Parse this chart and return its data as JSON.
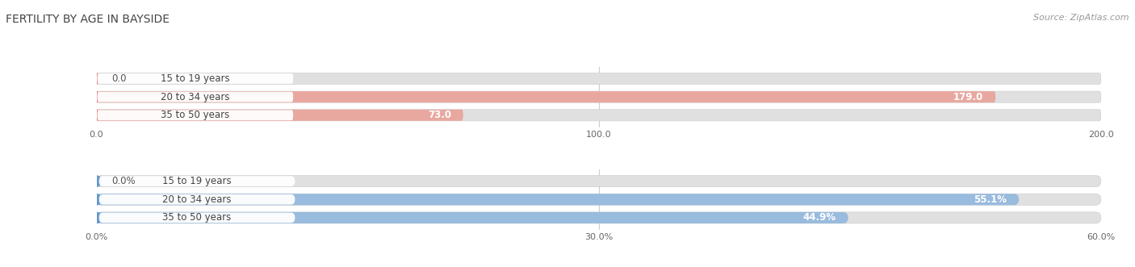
{
  "title": "FERTILITY BY AGE IN BAYSIDE",
  "source": "Source: ZipAtlas.com",
  "top_chart": {
    "categories": [
      "15 to 19 years",
      "20 to 34 years",
      "35 to 50 years"
    ],
    "values": [
      0.0,
      179.0,
      73.0
    ],
    "xlim": [
      0,
      200
    ],
    "xticks": [
      0.0,
      100.0,
      200.0
    ],
    "xtick_labels": [
      "0.0",
      "100.0",
      "200.0"
    ],
    "bar_color": "#e07070",
    "bar_light_color": "#e8a8a0",
    "label_inside_color": "#ffffff",
    "label_outside_color": "#555555"
  },
  "bottom_chart": {
    "categories": [
      "15 to 19 years",
      "20 to 34 years",
      "35 to 50 years"
    ],
    "values": [
      0.0,
      55.1,
      44.9
    ],
    "xlim": [
      0,
      60
    ],
    "xticks": [
      0.0,
      30.0,
      60.0
    ],
    "xtick_labels": [
      "0.0%",
      "30.0%",
      "60.0%"
    ],
    "bar_color": "#6699cc",
    "bar_light_color": "#99bbdd",
    "label_inside_color": "#ffffff",
    "label_outside_color": "#555555"
  },
  "background_color": "#ffffff",
  "bar_bg_color": "#e0e0e0",
  "label_bg_color": "#ffffff",
  "bar_bg_border_color": "#d0d0d0",
  "title_fontsize": 10,
  "label_fontsize": 8.5,
  "tick_fontsize": 8,
  "source_fontsize": 8
}
